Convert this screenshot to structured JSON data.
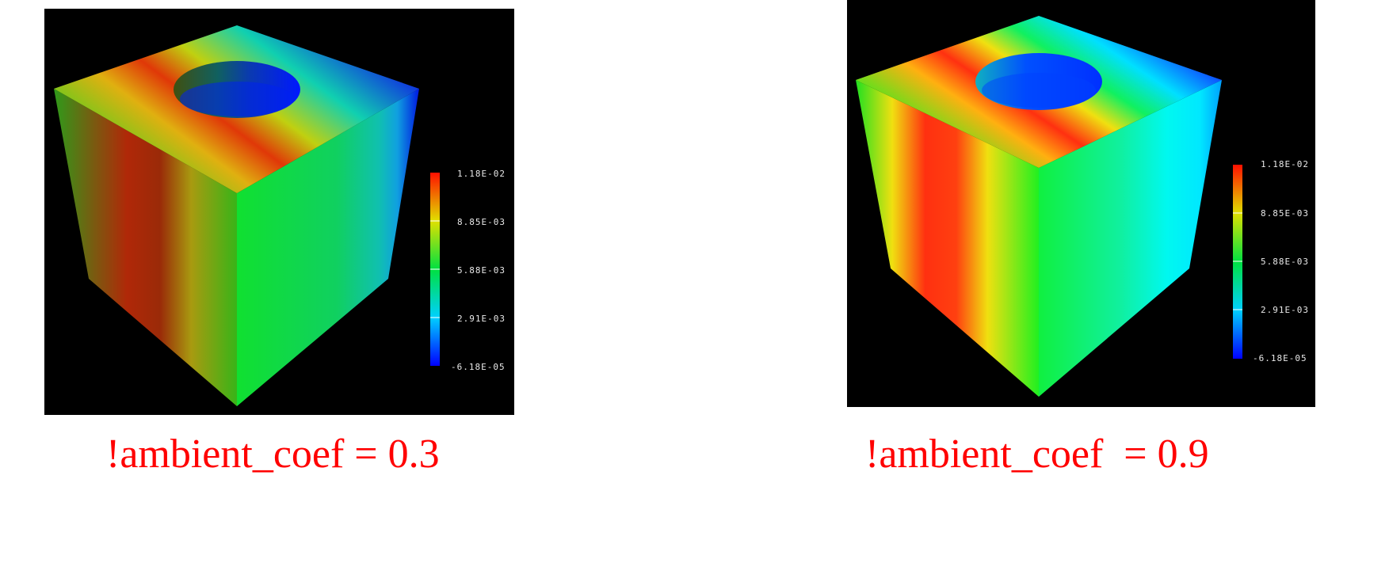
{
  "panels": [
    {
      "caption": "!ambient_coef = 0.3",
      "ambient_coef": 0.3,
      "legend": {
        "labels": [
          "1.18E-02",
          "8.85E-03",
          "5.88E-03",
          "2.91E-03",
          "-6.18E-05"
        ]
      }
    },
    {
      "caption": "!ambient_coef  = 0.9",
      "ambient_coef": 0.9,
      "legend": {
        "labels": [
          "1.18E-02",
          "8.85E-03",
          "5.88E-03",
          "2.91E-03",
          "-6.18E-05"
        ]
      }
    }
  ],
  "colors": {
    "background": "#000000",
    "caption": "#ff0000",
    "legend_text": "#e8e8e8"
  }
}
